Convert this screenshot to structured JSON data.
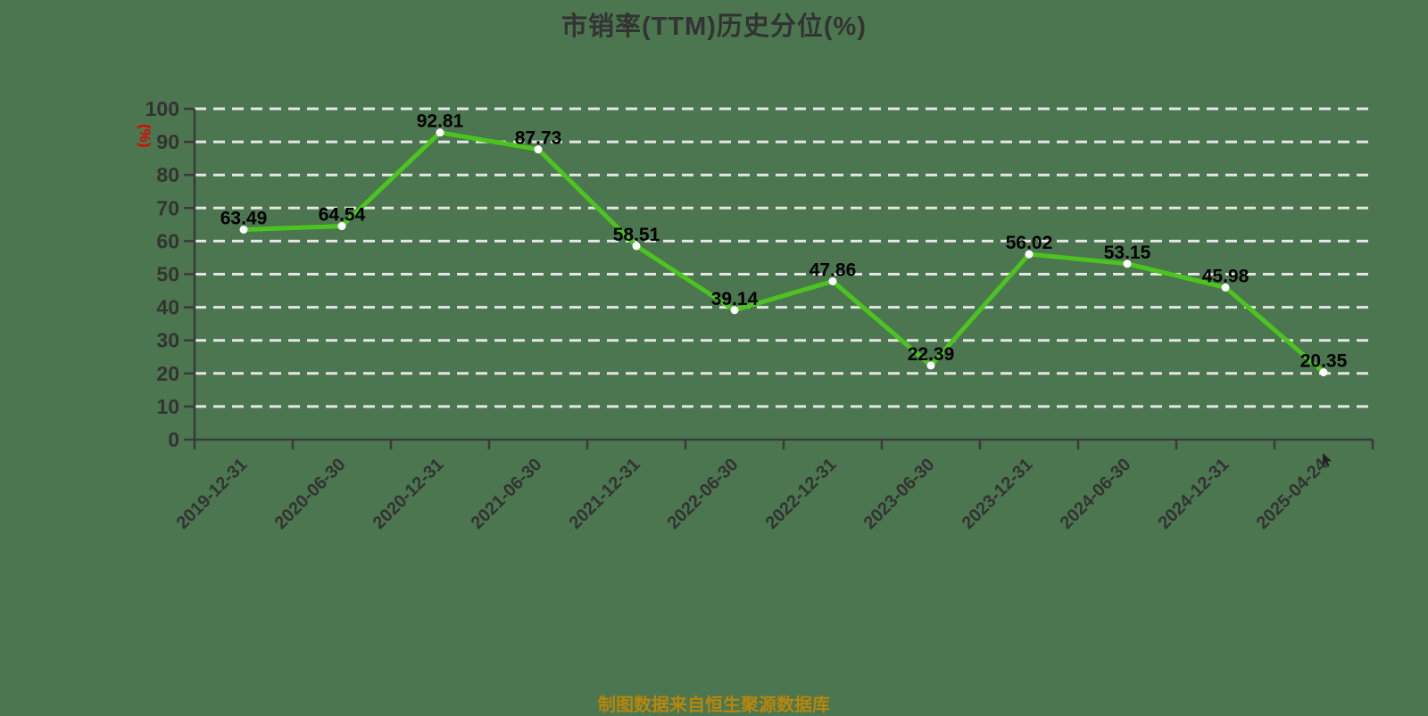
{
  "title": "市销率(TTM)历史分位(%)",
  "footer": {
    "source_note": "制图数据来自恒生聚源数据库"
  },
  "y_axis_unit": "(%)",
  "colors": {
    "background": "#4B764F",
    "title": "#333333",
    "axis": "#3a3a3a",
    "grid": "#e6e6e6",
    "line": "#4CC41F",
    "marker_fill": "#ffffff",
    "value_label": "#000000",
    "tick_label": "#333333",
    "unit_label": "#e60000",
    "footer": "#b8860b",
    "cursor": "#222222"
  },
  "chart_data": {
    "type": "line",
    "title": "市销率(TTM)历史分位(%)",
    "categories": [
      "2019-12-31",
      "2020-06-30",
      "2020-12-31",
      "2021-06-30",
      "2021-12-31",
      "2022-06-30",
      "2022-12-31",
      "2023-06-30",
      "2023-12-31",
      "2024-06-30",
      "2024-12-31",
      "2025-04-24"
    ],
    "values": [
      63.49,
      64.54,
      92.81,
      87.73,
      58.51,
      39.14,
      47.86,
      22.39,
      56.02,
      53.15,
      45.98,
      20.35
    ],
    "xlabel": "",
    "ylabel": "(%)",
    "ylim": [
      0,
      100
    ],
    "y_ticks": [
      0,
      10,
      20,
      30,
      40,
      50,
      60,
      70,
      80,
      90,
      100
    ],
    "grid": "horizontal-dashed",
    "legend_position": "none",
    "value_labels_shown": true,
    "x_label_rotation_deg": 45
  }
}
